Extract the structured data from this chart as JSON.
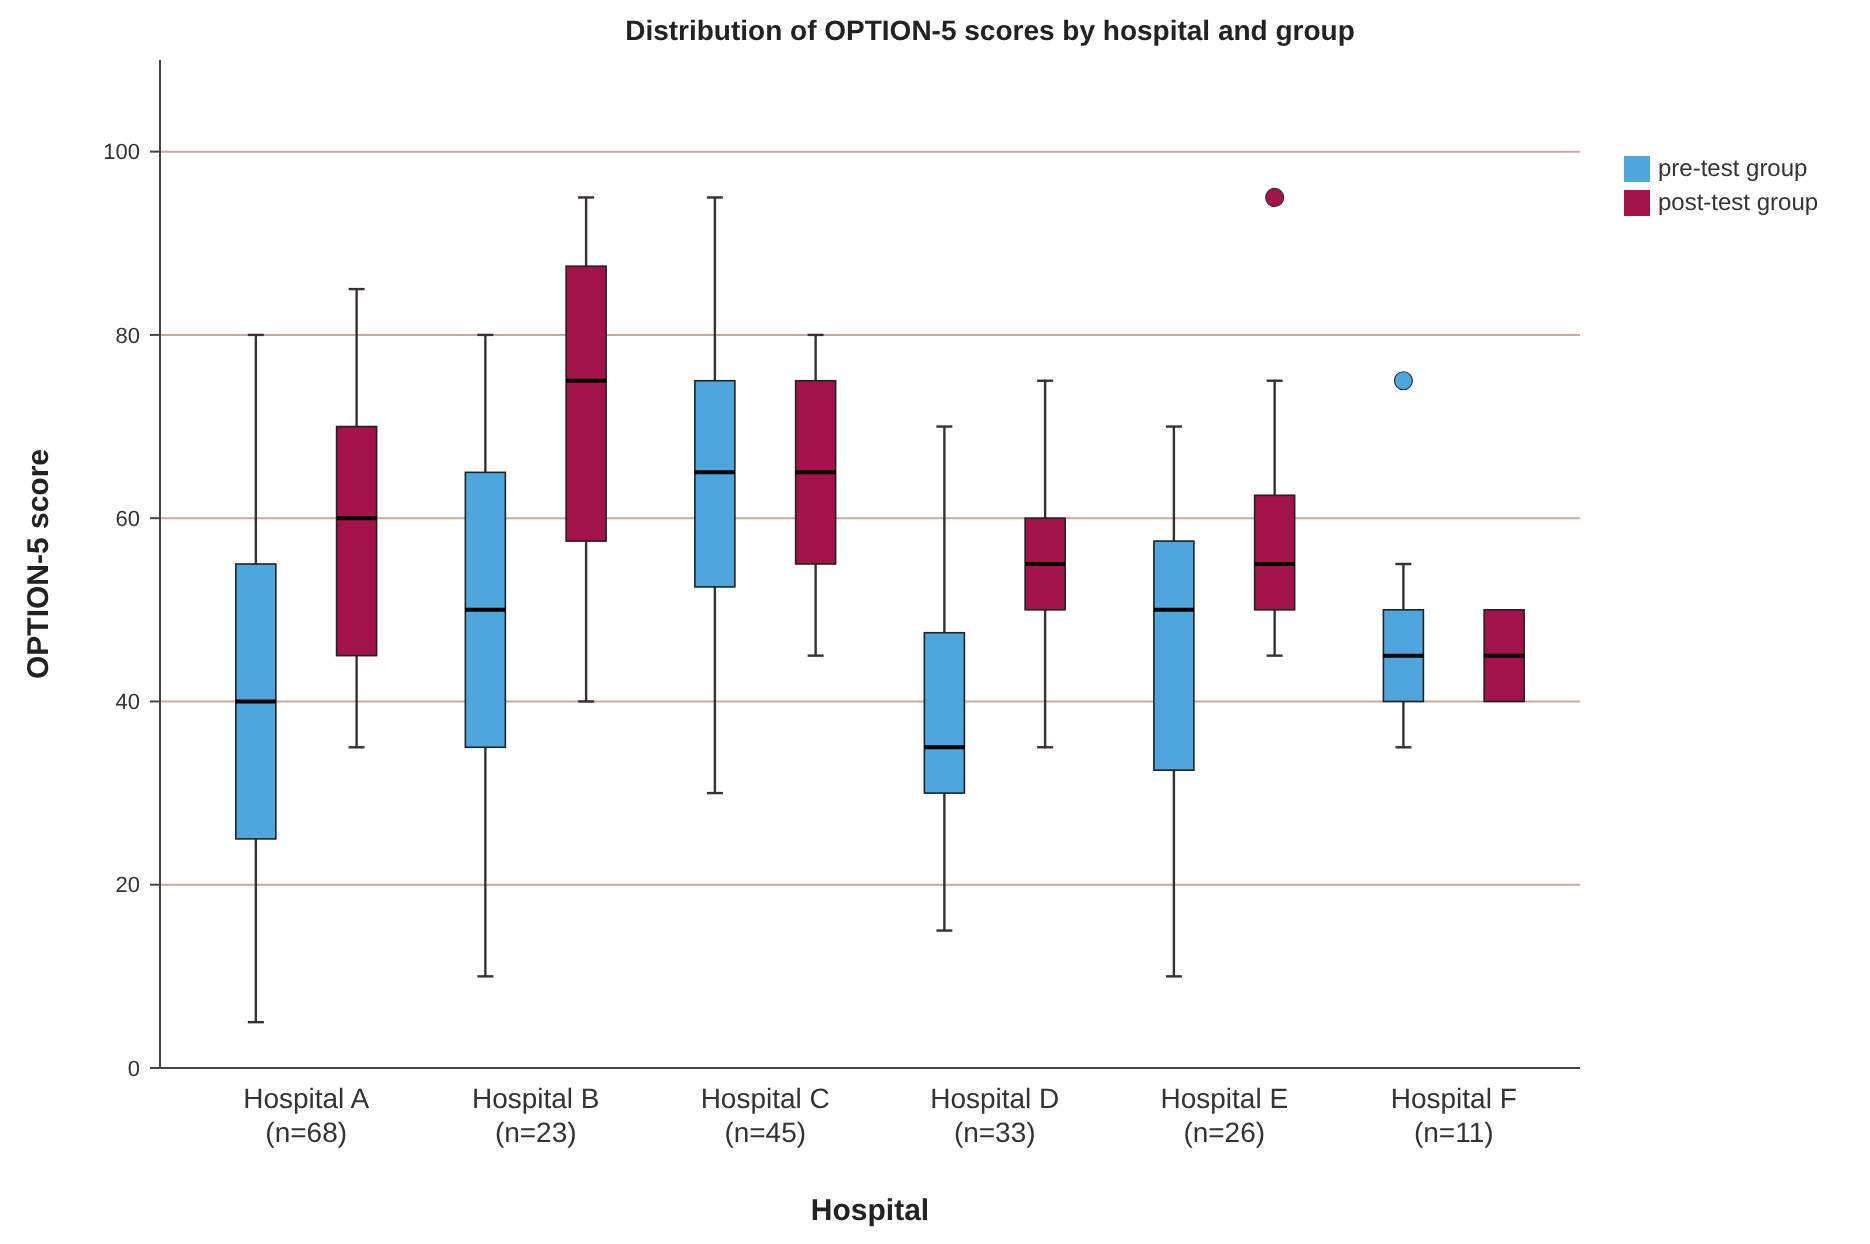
{
  "chart_data": {
    "type": "box",
    "title": "Distribution of OPTION-5 scores by hospital and group",
    "xlabel": "Hospital",
    "ylabel": "OPTION-5 score",
    "categories": [
      "Hospital A\n(n=68)",
      "Hospital B\n(n=23)",
      "Hospital C\n(n=45)",
      "Hospital D\n(n=33)",
      "Hospital E\n(n=26)",
      "Hospital F\n(n=11)"
    ],
    "ylim": [
      0,
      110
    ],
    "yticks": [
      0,
      20,
      40,
      60,
      80,
      100
    ],
    "grid": "y",
    "legend": "top right",
    "series": [
      {
        "name": "pre-test group",
        "color": "#4ea6dc",
        "boxes": [
          {
            "low": 5,
            "q1": 25,
            "median": 40,
            "q3": 55,
            "high": 80
          },
          {
            "low": 10,
            "q1": 35,
            "median": 50,
            "q3": 65,
            "high": 80
          },
          {
            "low": 30,
            "q1": 52.5,
            "median": 65,
            "q3": 75,
            "high": 95
          },
          {
            "low": 15,
            "q1": 30,
            "median": 35,
            "q3": 47.5,
            "high": 70
          },
          {
            "low": 10,
            "q1": 32.5,
            "median": 50,
            "q3": 57.5,
            "high": 70
          },
          {
            "low": 35,
            "q1": 40,
            "median": 45,
            "q3": 50,
            "high": 55,
            "outliers": [
              75
            ]
          }
        ]
      },
      {
        "name": "post-test group",
        "color": "#a3124a",
        "boxes": [
          {
            "low": 35,
            "q1": 45,
            "median": 60,
            "q3": 70,
            "high": 85
          },
          {
            "low": 40,
            "q1": 57.5,
            "median": 75,
            "q3": 87.5,
            "high": 95
          },
          {
            "low": 45,
            "q1": 55,
            "median": 65,
            "q3": 75,
            "high": 80
          },
          {
            "low": 35,
            "q1": 50,
            "median": 55,
            "q3": 60,
            "high": 75
          },
          {
            "low": 45,
            "q1": 50,
            "median": 55,
            "q3": 62.5,
            "high": 75,
            "outliers": [
              95
            ]
          },
          {
            "low": 40,
            "q1": 40,
            "median": 45,
            "q3": 50,
            "high": 50
          }
        ]
      }
    ]
  }
}
